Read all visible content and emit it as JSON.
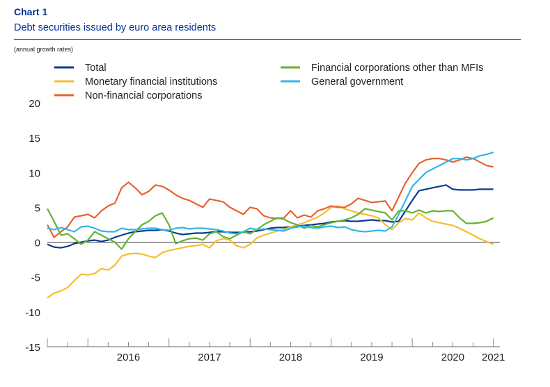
{
  "header": {
    "chart_label": "Chart 1",
    "title": "Debt securities issued by euro area residents",
    "subtitle": "(annual growth rates)"
  },
  "chart_data": {
    "type": "line",
    "title": "Debt securities issued by euro area residents",
    "subtitle": "(annual growth rates)",
    "xlabel": "",
    "ylabel": "",
    "ylim": [
      -15,
      20
    ],
    "yticks": [
      -15,
      -10,
      -5,
      0,
      5,
      10,
      15,
      20
    ],
    "xlim": [
      2015.5,
      2021.08
    ],
    "xtick_labels": [
      {
        "label": "2016",
        "x": 2016.0
      },
      {
        "label": "2017",
        "x": 2017.0
      },
      {
        "label": "2018",
        "x": 2018.0
      },
      {
        "label": "2019",
        "x": 2019.0
      },
      {
        "label": "2020",
        "x": 2020.0
      },
      {
        "label": "2021",
        "x": 2021.0
      }
    ],
    "grid": false,
    "legend_position": "top",
    "x": [
      2015.5,
      2015.583,
      2015.667,
      2015.75,
      2015.833,
      2015.917,
      2016.0,
      2016.083,
      2016.167,
      2016.25,
      2016.333,
      2016.417,
      2016.5,
      2016.583,
      2016.667,
      2016.75,
      2016.833,
      2016.917,
      2017.0,
      2017.083,
      2017.167,
      2017.25,
      2017.333,
      2017.417,
      2017.5,
      2017.583,
      2017.667,
      2017.75,
      2017.833,
      2017.917,
      2018.0,
      2018.083,
      2018.167,
      2018.25,
      2018.333,
      2018.417,
      2018.5,
      2018.583,
      2018.667,
      2018.75,
      2018.833,
      2018.917,
      2019.0,
      2019.083,
      2019.167,
      2019.25,
      2019.333,
      2019.417,
      2019.5,
      2019.583,
      2019.667,
      2019.75,
      2019.833,
      2019.917,
      2020.0,
      2020.083,
      2020.167,
      2020.25,
      2020.333,
      2020.417,
      2020.5,
      2020.583,
      2020.667,
      2020.75,
      2020.833,
      2020.917,
      2021.0
    ],
    "series": [
      {
        "name": "Total",
        "color": "#0a3b8f",
        "values": [
          -0.3,
          -0.7,
          -0.8,
          -0.6,
          -0.2,
          0.0,
          0.2,
          0.3,
          0.1,
          0.3,
          0.7,
          1.0,
          1.3,
          1.5,
          1.6,
          1.7,
          1.7,
          1.8,
          1.6,
          1.3,
          1.1,
          1.2,
          1.3,
          1.3,
          1.4,
          1.5,
          1.5,
          1.4,
          1.4,
          1.4,
          1.5,
          1.6,
          1.8,
          2.0,
          2.1,
          2.1,
          2.2,
          2.3,
          2.4,
          2.5,
          2.6,
          2.7,
          2.9,
          3.0,
          3.1,
          3.0,
          3.0,
          3.1,
          3.2,
          3.1,
          3.1,
          2.9,
          3.0,
          4.5,
          6.0,
          7.4,
          7.6,
          7.8,
          8.0,
          8.2,
          7.6,
          7.5,
          7.5,
          7.5,
          7.6,
          7.6,
          7.6
        ]
      },
      {
        "name": "Monetary financial institutions",
        "color": "#f5be2e",
        "values": [
          -8.0,
          -7.3,
          -7.0,
          -6.5,
          -5.5,
          -4.6,
          -4.7,
          -4.5,
          -3.8,
          -4.0,
          -3.3,
          -2.0,
          -1.7,
          -1.6,
          -1.7,
          -2.0,
          -2.2,
          -1.5,
          -1.2,
          -1.0,
          -0.8,
          -0.6,
          -0.5,
          -0.3,
          -0.8,
          0.2,
          0.5,
          0.3,
          -0.5,
          -0.8,
          -0.3,
          0.6,
          1.0,
          1.3,
          1.6,
          1.8,
          2.2,
          2.5,
          2.8,
          3.2,
          3.6,
          4.2,
          5.0,
          5.2,
          4.8,
          4.5,
          4.2,
          4.0,
          3.8,
          3.5,
          2.5,
          1.8,
          2.8,
          3.4,
          3.2,
          4.2,
          3.5,
          3.0,
          2.8,
          2.6,
          2.4,
          2.0,
          1.5,
          1.0,
          0.5,
          0.1,
          -0.3
        ]
      },
      {
        "name": "Non-financial corporations",
        "color": "#e8612e",
        "values": [
          2.5,
          0.7,
          1.5,
          2.2,
          3.6,
          3.8,
          4.0,
          3.5,
          4.5,
          5.2,
          5.6,
          7.8,
          8.6,
          7.8,
          6.8,
          7.3,
          8.2,
          8.0,
          7.5,
          6.8,
          6.3,
          6.0,
          5.5,
          5.0,
          6.2,
          6.0,
          5.8,
          5.0,
          4.5,
          4.0,
          5.0,
          4.8,
          3.8,
          3.5,
          3.4,
          3.5,
          4.5,
          3.5,
          3.9,
          3.6,
          4.5,
          4.8,
          5.2,
          5.0,
          5.0,
          5.5,
          6.3,
          6.0,
          5.7,
          5.8,
          5.9,
          4.5,
          6.5,
          8.5,
          10.0,
          11.3,
          11.8,
          12.0,
          12.0,
          11.8,
          11.5,
          11.8,
          12.2,
          12.0,
          11.5,
          11.0,
          10.8
        ]
      },
      {
        "name": "Financial corporations other than MFIs",
        "color": "#65b32e",
        "values": [
          4.8,
          3.0,
          1.0,
          1.2,
          0.5,
          -0.3,
          0.3,
          1.5,
          1.0,
          0.5,
          0.0,
          -1.0,
          0.5,
          1.5,
          2.5,
          3.0,
          3.8,
          4.2,
          2.5,
          -0.2,
          0.2,
          0.5,
          0.6,
          0.3,
          1.2,
          1.5,
          0.8,
          0.5,
          1.0,
          1.5,
          1.2,
          1.8,
          2.5,
          3.0,
          3.5,
          3.3,
          2.8,
          2.5,
          2.0,
          2.4,
          2.2,
          2.5,
          2.8,
          3.0,
          3.2,
          3.5,
          4.0,
          4.8,
          4.6,
          4.4,
          4.2,
          3.2,
          4.5,
          4.5,
          4.2,
          4.6,
          4.2,
          4.5,
          4.4,
          4.5,
          4.5,
          3.5,
          2.7,
          2.7,
          2.8,
          3.0,
          3.5
        ]
      },
      {
        "name": "General government",
        "color": "#32b6e5",
        "values": [
          2.0,
          1.8,
          2.1,
          1.8,
          1.5,
          2.2,
          2.3,
          2.0,
          1.6,
          1.5,
          1.5,
          2.0,
          1.8,
          1.8,
          1.9,
          2.0,
          2.0,
          1.8,
          1.7,
          2.0,
          2.1,
          1.9,
          2.0,
          2.0,
          1.9,
          1.8,
          1.6,
          1.3,
          1.2,
          1.5,
          2.0,
          1.8,
          1.9,
          1.8,
          1.7,
          1.6,
          2.0,
          2.2,
          2.3,
          2.1,
          2.0,
          2.2,
          2.3,
          2.1,
          2.2,
          1.8,
          1.6,
          1.5,
          1.6,
          1.7,
          1.6,
          2.2,
          4.0,
          6.0,
          8.0,
          9.0,
          10.0,
          10.5,
          11.0,
          11.5,
          12.0,
          12.0,
          11.8,
          12.0,
          12.4,
          12.6,
          12.9
        ]
      }
    ]
  }
}
